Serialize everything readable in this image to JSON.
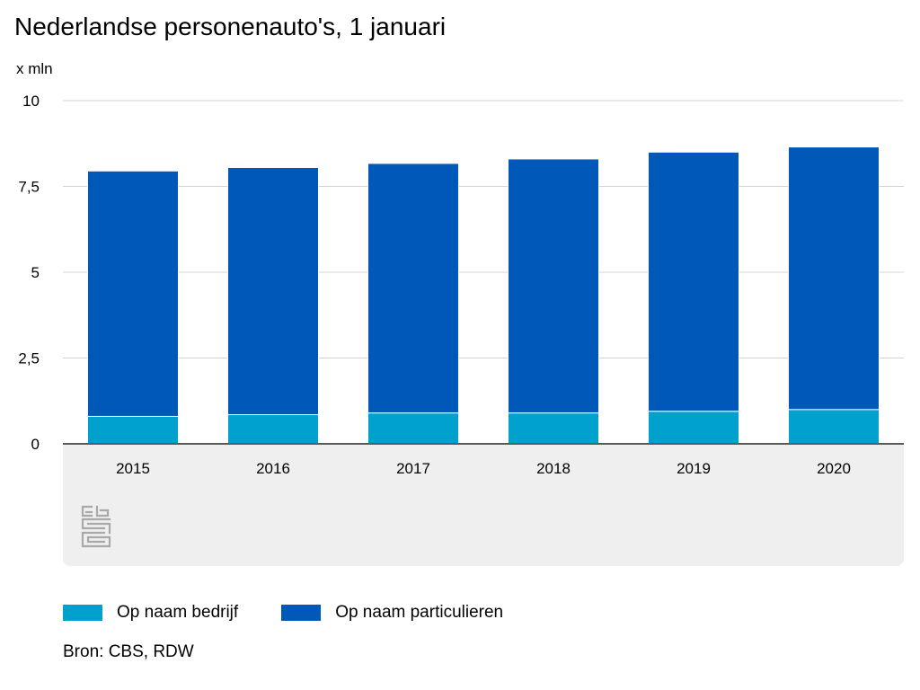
{
  "title": "Nederlandse personenauto's, 1 januari",
  "source": "Bron: CBS, RDW",
  "colors": {
    "bedrijf": "#00a1cd",
    "particulieren": "#0058b8",
    "grid": "#d4d4d4",
    "axis": "#5a5a5a",
    "band": "#efefef",
    "logo": "#a9a9a9"
  },
  "logo_icon": "cbs-logo",
  "chart_data": {
    "type": "bar",
    "stacked": true,
    "title": "Nederlandse personenauto's, 1 januari",
    "ylabel": "x mln",
    "xlabel": "",
    "ylim": [
      0,
      10
    ],
    "yticks": [
      0,
      2.5,
      5,
      7.5,
      10
    ],
    "ytick_labels": [
      "0",
      "2,5",
      "5",
      "7,5",
      "10"
    ],
    "grid": true,
    "legend_position": "bottom-left",
    "categories": [
      "2015",
      "2016",
      "2017",
      "2018",
      "2019",
      "2020"
    ],
    "series": [
      {
        "name": "Op naam bedrijf",
        "color": "#00a1cd",
        "values": [
          0.8,
          0.85,
          0.9,
          0.9,
          0.95,
          1.0
        ]
      },
      {
        "name": "Op naam particulieren",
        "color": "#0058b8",
        "values": [
          7.15,
          7.2,
          7.27,
          7.4,
          7.55,
          7.65
        ]
      }
    ]
  }
}
